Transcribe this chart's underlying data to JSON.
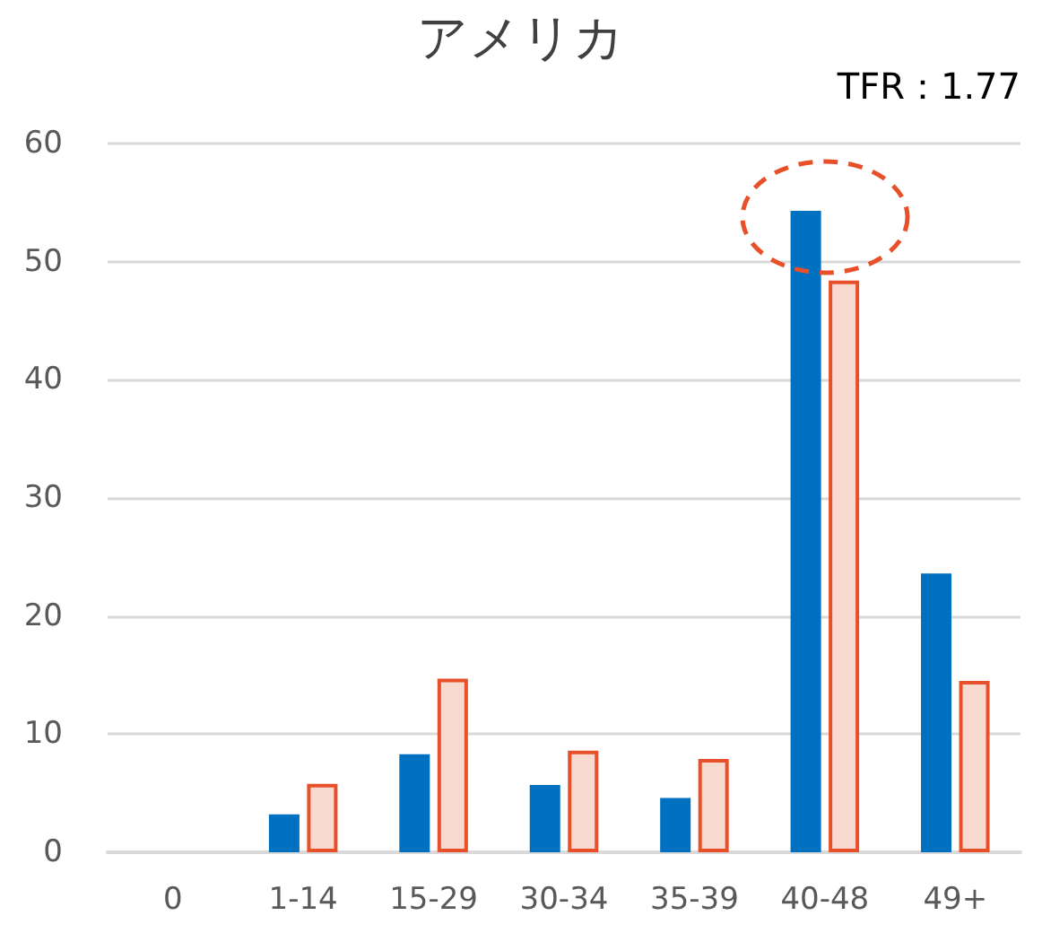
{
  "chart_data": {
    "type": "bar",
    "title": "アメリカ",
    "annotations": [
      "TFR：1.77"
    ],
    "categories": [
      "0",
      "1-14",
      "15-29",
      "30-34",
      "35-39",
      "40-48",
      "49+"
    ],
    "series": [
      {
        "color": "#0070c0",
        "values": [
          0,
          3.2,
          8.3,
          5.7,
          4.6,
          54.3,
          23.6
        ]
      },
      {
        "color": "#f8d9d0",
        "values": [
          0,
          5.8,
          14.7,
          8.6,
          7.9,
          48.4,
          14.5
        ]
      }
    ],
    "ylim": [
      0,
      60
    ],
    "yticks": [
      0,
      10,
      20,
      30,
      40,
      50,
      60
    ],
    "grid": "y"
  }
}
